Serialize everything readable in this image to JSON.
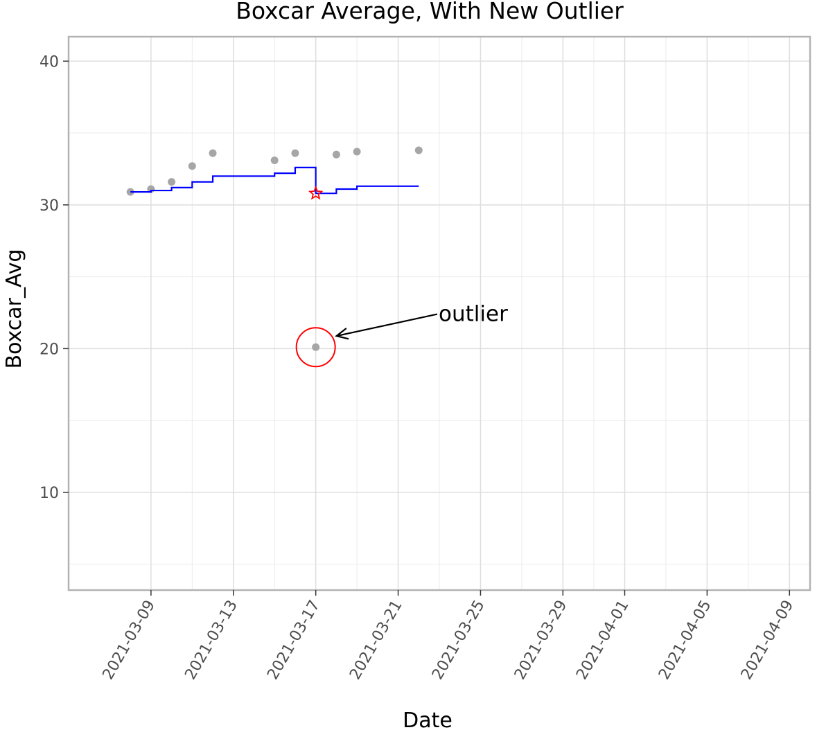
{
  "chart_data": {
    "type": "scatter",
    "title": "Boxcar Average, With New Outlier",
    "xlabel": "Date",
    "ylabel": "Boxcar_Avg",
    "xlim": [
      "2021-03-05",
      "2021-04-10"
    ],
    "ylim": [
      3.2,
      41.7
    ],
    "x_ticks": [
      "2021-03-09",
      "2021-03-13",
      "2021-03-17",
      "2021-03-21",
      "2021-03-25",
      "2021-03-29",
      "2021-04-01",
      "2021-04-05",
      "2021-04-09"
    ],
    "y_ticks": [
      10,
      20,
      30,
      40
    ],
    "grid": true,
    "series": [
      {
        "kind": "points",
        "color": "#a6a6a6",
        "x": [
          "2021-03-08",
          "2021-03-09",
          "2021-03-10",
          "2021-03-11",
          "2021-03-12",
          "2021-03-15",
          "2021-03-16",
          "2021-03-17",
          "2021-03-18",
          "2021-03-19",
          "2021-03-22"
        ],
        "y": [
          30.9,
          31.1,
          31.6,
          32.7,
          33.6,
          33.1,
          33.6,
          20.1,
          33.5,
          33.7,
          33.8
        ]
      },
      {
        "kind": "step",
        "color": "#0000ff",
        "x": [
          "2021-03-08",
          "2021-03-09",
          "2021-03-10",
          "2021-03-11",
          "2021-03-12",
          "2021-03-15",
          "2021-03-16",
          "2021-03-17",
          "2021-03-18",
          "2021-03-19",
          "2021-03-22"
        ],
        "y": [
          30.9,
          31.0,
          31.2,
          31.6,
          32.0,
          32.2,
          32.6,
          30.8,
          31.1,
          31.3,
          31.3
        ]
      },
      {
        "kind": "star-marker",
        "color": "#ff0000",
        "x": [
          "2021-03-17"
        ],
        "y": [
          30.8
        ]
      }
    ],
    "annotations": [
      {
        "text": "outlier",
        "point": [
          "2021-03-17",
          20.1
        ],
        "text_at": [
          "2021-03-23",
          22.4
        ],
        "circle_color": "#ff0000"
      }
    ]
  }
}
